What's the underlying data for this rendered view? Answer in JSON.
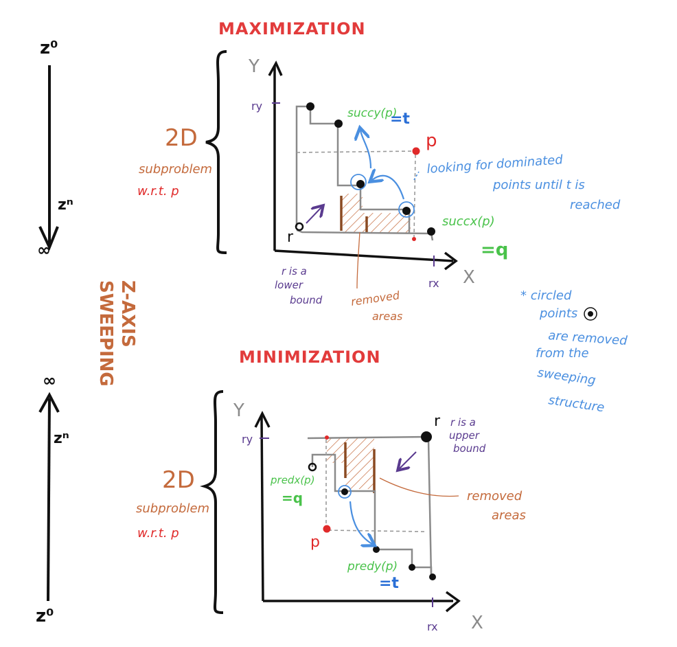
{
  "colors": {
    "ink": "#111111",
    "grid": "#8a8a8a",
    "dash": "#9a9a9a",
    "title_red": "#e23b3b",
    "point_red": "#e02a2a",
    "orange": "#c46a3c",
    "hatch": "#c46a3c",
    "bar_brown": "#8a4a22",
    "green": "#49c24a",
    "blue": "#2b6fd6",
    "light_blue": "#4a8fe0",
    "purple": "#5a3b8f"
  },
  "titles": {
    "maximization": "MAXIMIZATION",
    "minimization": "MINIMIZATION",
    "sweeping_line1": "Z-AXIS",
    "sweeping_line2": "SWEEPING"
  },
  "z_axis_top": {
    "start": "z⁰",
    "mid": "zⁿ",
    "end": "∞"
  },
  "z_axis_bottom": {
    "start": "∞",
    "mid": "zⁿ",
    "end": "z⁰"
  },
  "panel_max": {
    "brace_big": "2D",
    "brace_sub": "subproblem",
    "brace_wrt": "w.r.t. p",
    "y_axis": "Y",
    "x_axis": "X",
    "ry": "ry",
    "rx": "rx",
    "r": "r",
    "p": "p",
    "succ_y": "succy(p)",
    "succ_y_eq": "=t",
    "succ_x": "succx(p)",
    "succ_x_eq": "=q",
    "looking_1": "looking for dominated",
    "looking_2": "points until t is",
    "looking_3": "reached",
    "r_lower_1": "r is a",
    "r_lower_2": "lower",
    "r_lower_3": "bound",
    "removed_1": "removed",
    "removed_2": "areas"
  },
  "panel_min": {
    "brace_big": "2D",
    "brace_sub": "subproblem",
    "brace_wrt": "w.r.t. p",
    "y_axis": "Y",
    "x_axis": "X",
    "ry": "ry",
    "rx": "rx",
    "r": "r",
    "p": "p",
    "pred_x": "predx(p)",
    "pred_x_eq": "=q",
    "pred_y": "predy(p)",
    "pred_y_eq": "=t",
    "r_upper_1": "r is a",
    "r_upper_2": "upper",
    "r_upper_3": "bound",
    "removed_1": "removed",
    "removed_2": "areas"
  },
  "note": {
    "line1": "* circled",
    "line2": "points",
    "line3": "are removed",
    "line4": "from the",
    "line5": "sweeping",
    "line6": "structure"
  }
}
